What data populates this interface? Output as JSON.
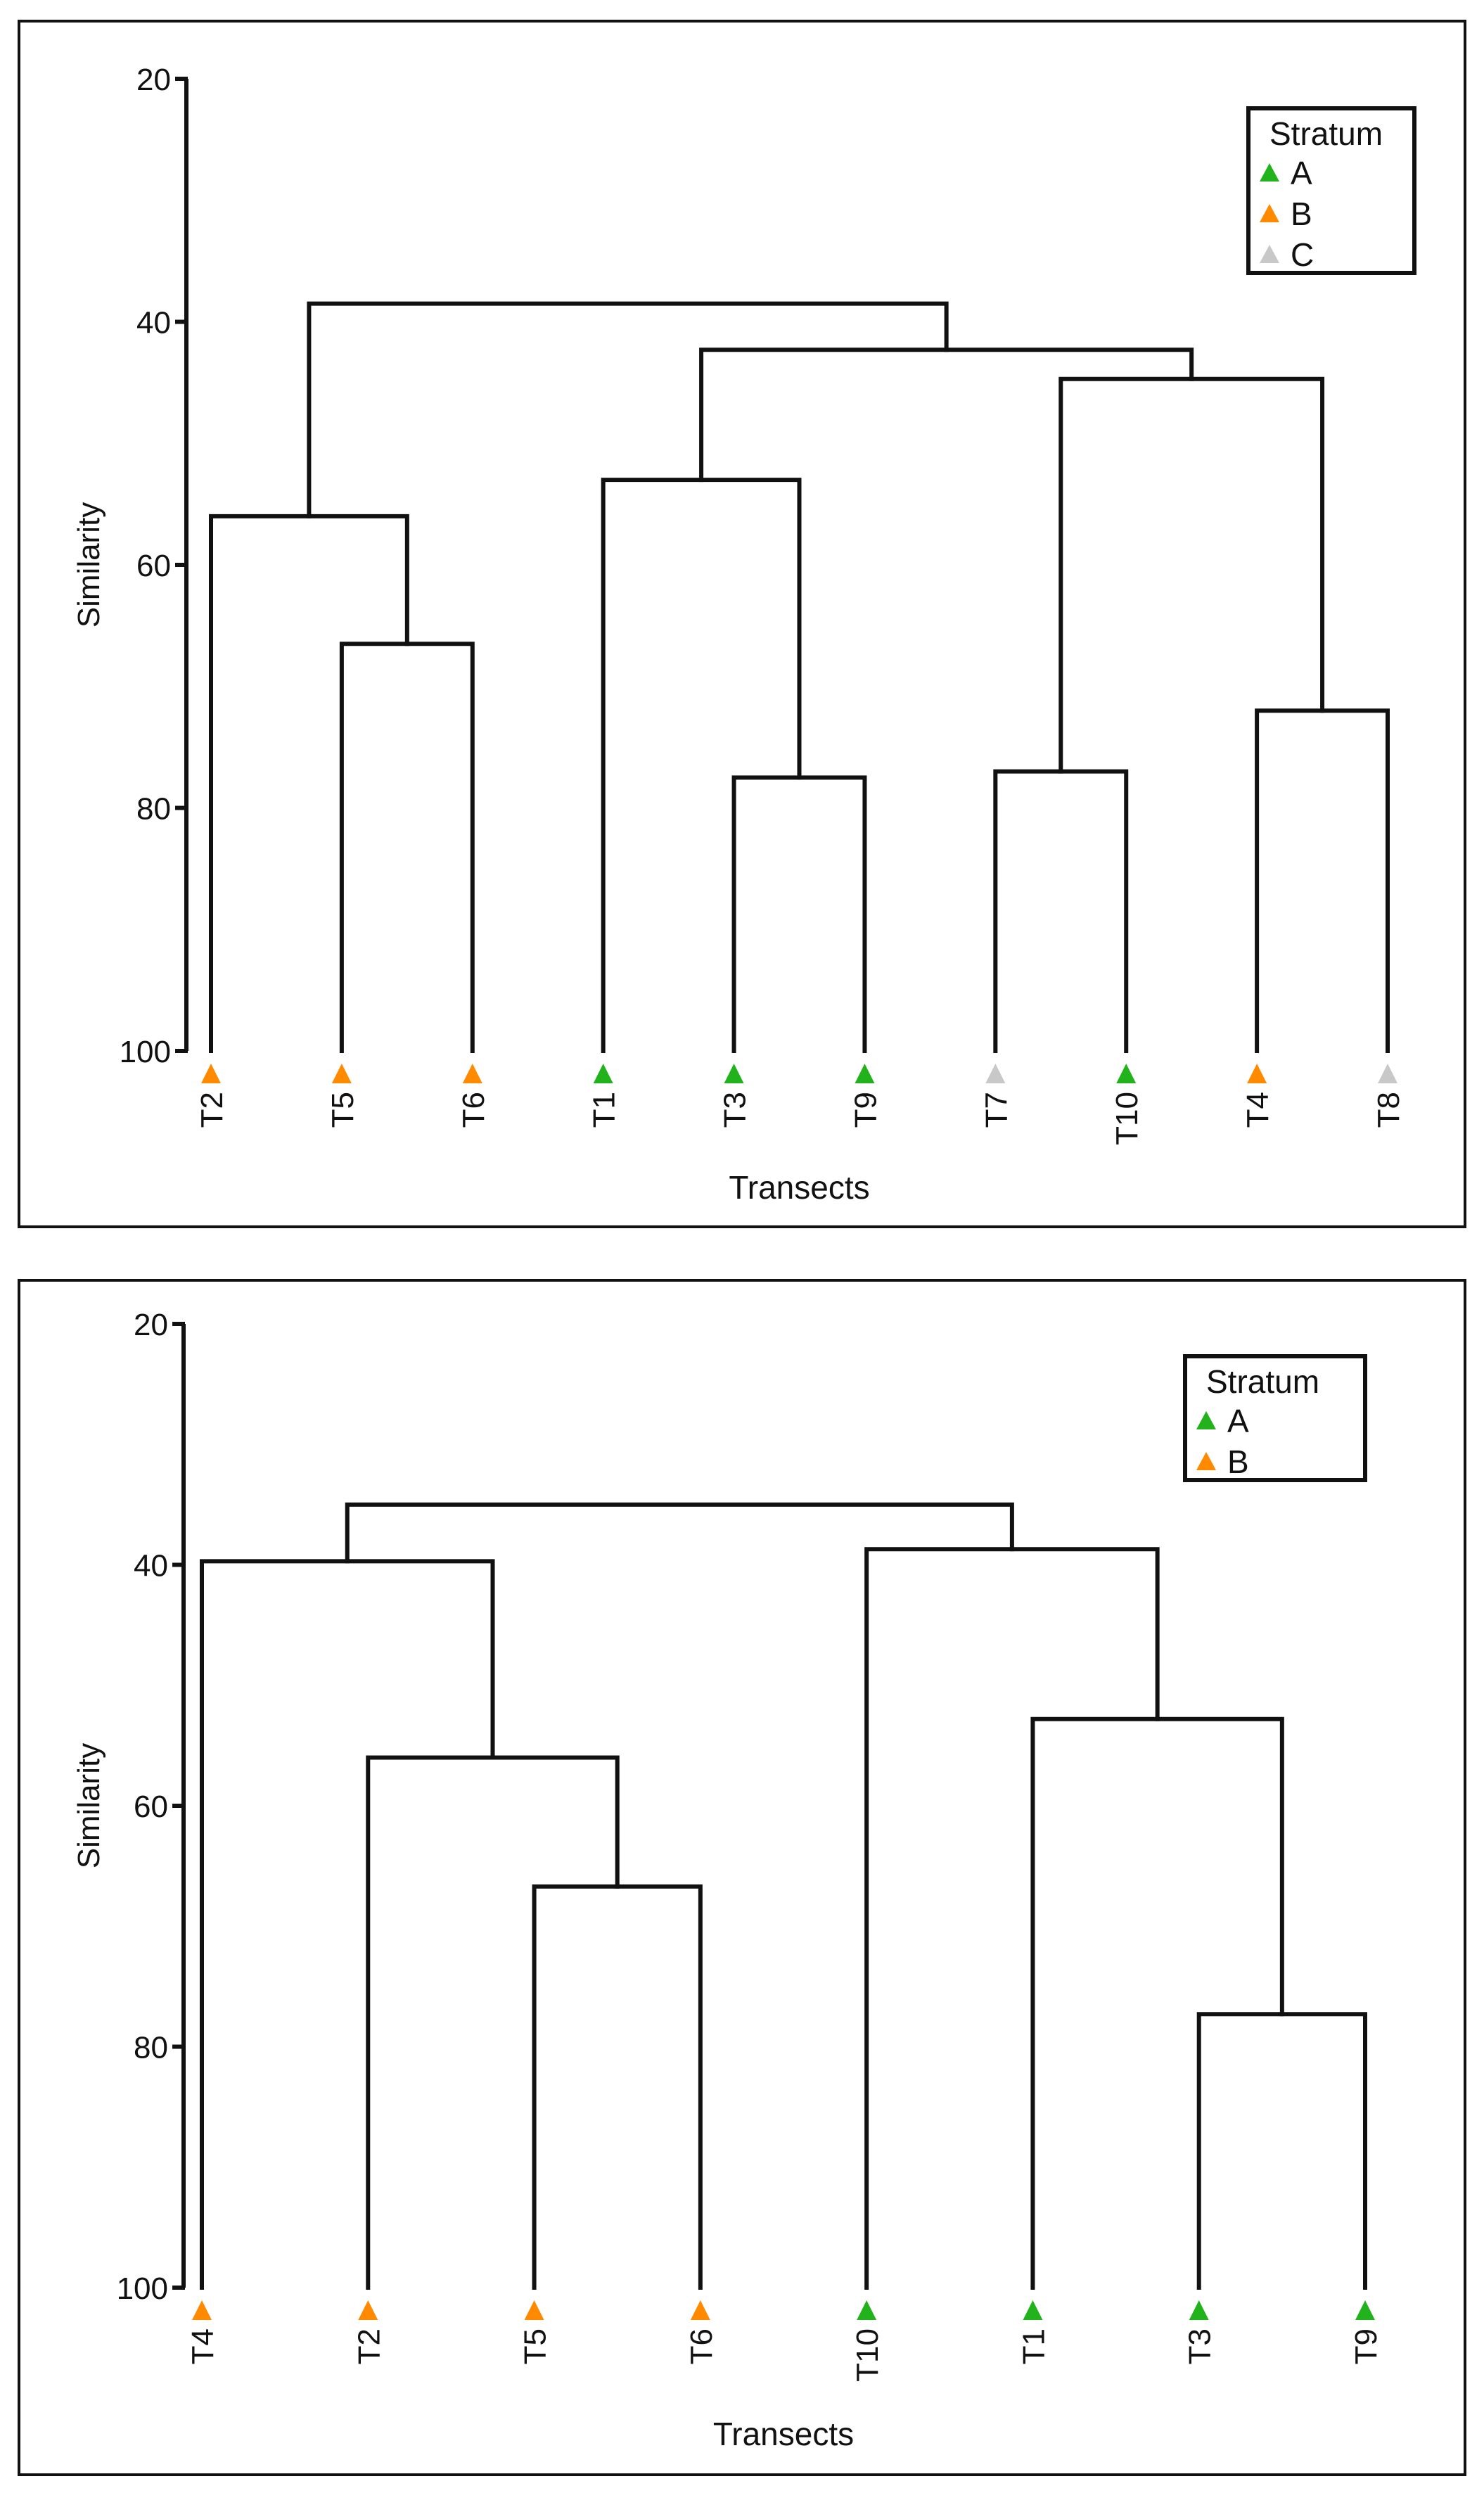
{
  "colors": {
    "A": "#22b21c",
    "B": "#ff8a00",
    "C": "#c8c8c8",
    "line": "#111111"
  },
  "chart_data": [
    {
      "type": "dendrogram",
      "ylabel": "Similarity",
      "xlabel": "Transects",
      "ylim": [
        20,
        100
      ],
      "yticks": [
        20,
        40,
        60,
        80,
        100
      ],
      "legend": {
        "title": "Stratum",
        "entries": [
          {
            "name": "A",
            "color": "#22b21c"
          },
          {
            "name": "B",
            "color": "#ff8a00"
          },
          {
            "name": "C",
            "color": "#c8c8c8"
          }
        ],
        "placement": "top-right"
      },
      "leaves": [
        {
          "label": "T2",
          "stratum": "B"
        },
        {
          "label": "T5",
          "stratum": "B"
        },
        {
          "label": "T6",
          "stratum": "B"
        },
        {
          "label": "T1",
          "stratum": "A"
        },
        {
          "label": "T3",
          "stratum": "A"
        },
        {
          "label": "T9",
          "stratum": "A"
        },
        {
          "label": "T7",
          "stratum": "C"
        },
        {
          "label": "T10",
          "stratum": "A"
        },
        {
          "label": "T4",
          "stratum": "B"
        },
        {
          "label": "T8",
          "stratum": "C"
        }
      ],
      "merges": [
        {
          "id": "c1",
          "left": "T5",
          "right": "T6",
          "similarity": 66.5
        },
        {
          "id": "c2",
          "left": "T2",
          "right": "c1",
          "similarity": 56.0
        },
        {
          "id": "c3",
          "left": "T3",
          "right": "T9",
          "similarity": 77.5
        },
        {
          "id": "c4",
          "left": "T1",
          "right": "c3",
          "similarity": 53.0
        },
        {
          "id": "c5",
          "left": "T7",
          "right": "T10",
          "similarity": 77.0
        },
        {
          "id": "c6",
          "left": "T4",
          "right": "T8",
          "similarity": 72.0
        },
        {
          "id": "c7",
          "left": "c5",
          "right": "c6",
          "similarity": 44.7
        },
        {
          "id": "c8",
          "left": "c4",
          "right": "c7",
          "similarity": 42.3
        },
        {
          "id": "c9",
          "left": "c2",
          "right": "c8",
          "similarity": 38.5
        }
      ]
    },
    {
      "type": "dendrogram",
      "ylabel": "Similarity",
      "xlabel": "Transects",
      "ylim": [
        20,
        100
      ],
      "yticks": [
        20,
        40,
        60,
        80,
        100
      ],
      "legend": {
        "title": "Stratum",
        "entries": [
          {
            "name": "A",
            "color": "#22b21c"
          },
          {
            "name": "B",
            "color": "#ff8a00"
          }
        ],
        "placement": "top-right"
      },
      "leaves": [
        {
          "label": "T4",
          "stratum": "B"
        },
        {
          "label": "T2",
          "stratum": "B"
        },
        {
          "label": "T5",
          "stratum": "B"
        },
        {
          "label": "T6",
          "stratum": "B"
        },
        {
          "label": "T10",
          "stratum": "A"
        },
        {
          "label": "T1",
          "stratum": "A"
        },
        {
          "label": "T3",
          "stratum": "A"
        },
        {
          "label": "T9",
          "stratum": "A"
        }
      ],
      "merges": [
        {
          "id": "d1",
          "left": "T5",
          "right": "T6",
          "similarity": 66.7
        },
        {
          "id": "d2",
          "left": "T2",
          "right": "d1",
          "similarity": 56.0
        },
        {
          "id": "d3",
          "left": "T4",
          "right": "d2",
          "similarity": 39.7
        },
        {
          "id": "d4",
          "left": "T3",
          "right": "T9",
          "similarity": 77.3
        },
        {
          "id": "d5",
          "left": "T1",
          "right": "d4",
          "similarity": 52.8
        },
        {
          "id": "d6",
          "left": "T10",
          "right": "d5",
          "similarity": 38.7
        },
        {
          "id": "d7",
          "left": "d3",
          "right": "d6",
          "similarity": 35.0
        }
      ]
    }
  ]
}
